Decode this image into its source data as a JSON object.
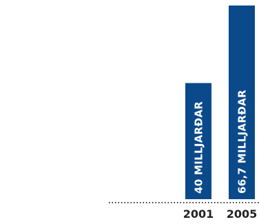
{
  "chart_data": {
    "type": "bar",
    "categories": [
      "2001",
      "2005"
    ],
    "values": [
      40,
      66.7
    ],
    "data_labels": [
      "40 MILLJARÐAR",
      "66,7 MILLJARÐAR"
    ],
    "ylim": [
      0,
      66.7
    ],
    "grid": false,
    "baseline_style": "dotted",
    "bar_color": "#0a4a8a"
  }
}
